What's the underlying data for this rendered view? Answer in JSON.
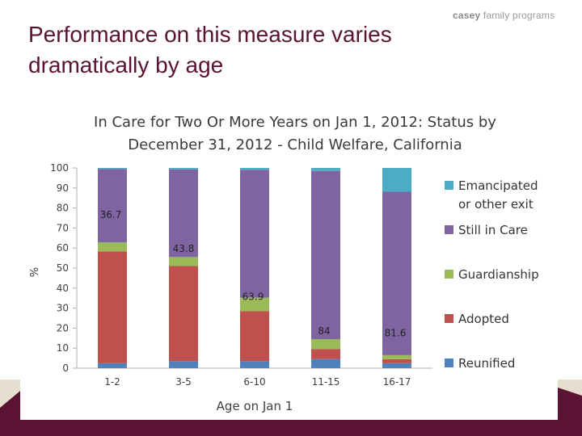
{
  "slide": {
    "title": "Performance on this measure varies dramatically by age",
    "logo_brand": "casey",
    "logo_rest": "family programs"
  },
  "colors": {
    "title": "#5a1333",
    "Emancipated": "#4bacc6",
    "Still in Care": "#8064a2",
    "Guardianship": "#9bbb59",
    "Adopted": "#c0504d",
    "Reunified": "#4f81bd",
    "band_dark": "#5a1333",
    "band_light": "#e6dfcf"
  },
  "chart_data": {
    "type": "bar",
    "stacked": true,
    "title_line1": "In Care for Two Or More Years on Jan 1, 2012: Status by",
    "title_line2": "December 31, 2012 -  Child Welfare, California",
    "xlabel": "Age on Jan 1",
    "ylabel": "%",
    "ylim": [
      0,
      100
    ],
    "yticks": [
      0,
      10,
      20,
      30,
      40,
      50,
      60,
      70,
      80,
      90,
      100
    ],
    "grid": false,
    "legend_position": "right",
    "categories": [
      "1-2",
      "3-5",
      "6-10",
      "11-15",
      "16-17"
    ],
    "series": [
      {
        "name": "Reunified",
        "values": [
          2.5,
          3.5,
          3.5,
          4.5,
          2.5
        ]
      },
      {
        "name": "Adopted",
        "values": [
          55.8,
          47.5,
          25.0,
          5.0,
          2.0
        ]
      },
      {
        "name": "Guardianship",
        "values": [
          4.5,
          4.5,
          6.7,
          5.0,
          2.0
        ]
      },
      {
        "name": "Still in Care",
        "values": [
          36.7,
          43.8,
          63.9,
          84.0,
          81.6
        ]
      },
      {
        "name": "Emancipated or other exit",
        "values": [
          0.5,
          0.7,
          0.9,
          1.5,
          11.9
        ]
      }
    ],
    "data_labels": [
      "36.7",
      "43.8",
      "63.9",
      "84",
      "81.6"
    ],
    "legend": [
      {
        "line1": "Emancipated",
        "line2": "or other exit",
        "key": "Emancipated"
      },
      {
        "line1": "Still in Care",
        "line2": "",
        "key": "Still in Care"
      },
      {
        "line1": "Guardianship",
        "line2": "",
        "key": "Guardianship"
      },
      {
        "line1": "Adopted",
        "line2": "",
        "key": "Adopted"
      },
      {
        "line1": "Reunified",
        "line2": "",
        "key": "Reunified"
      }
    ]
  }
}
